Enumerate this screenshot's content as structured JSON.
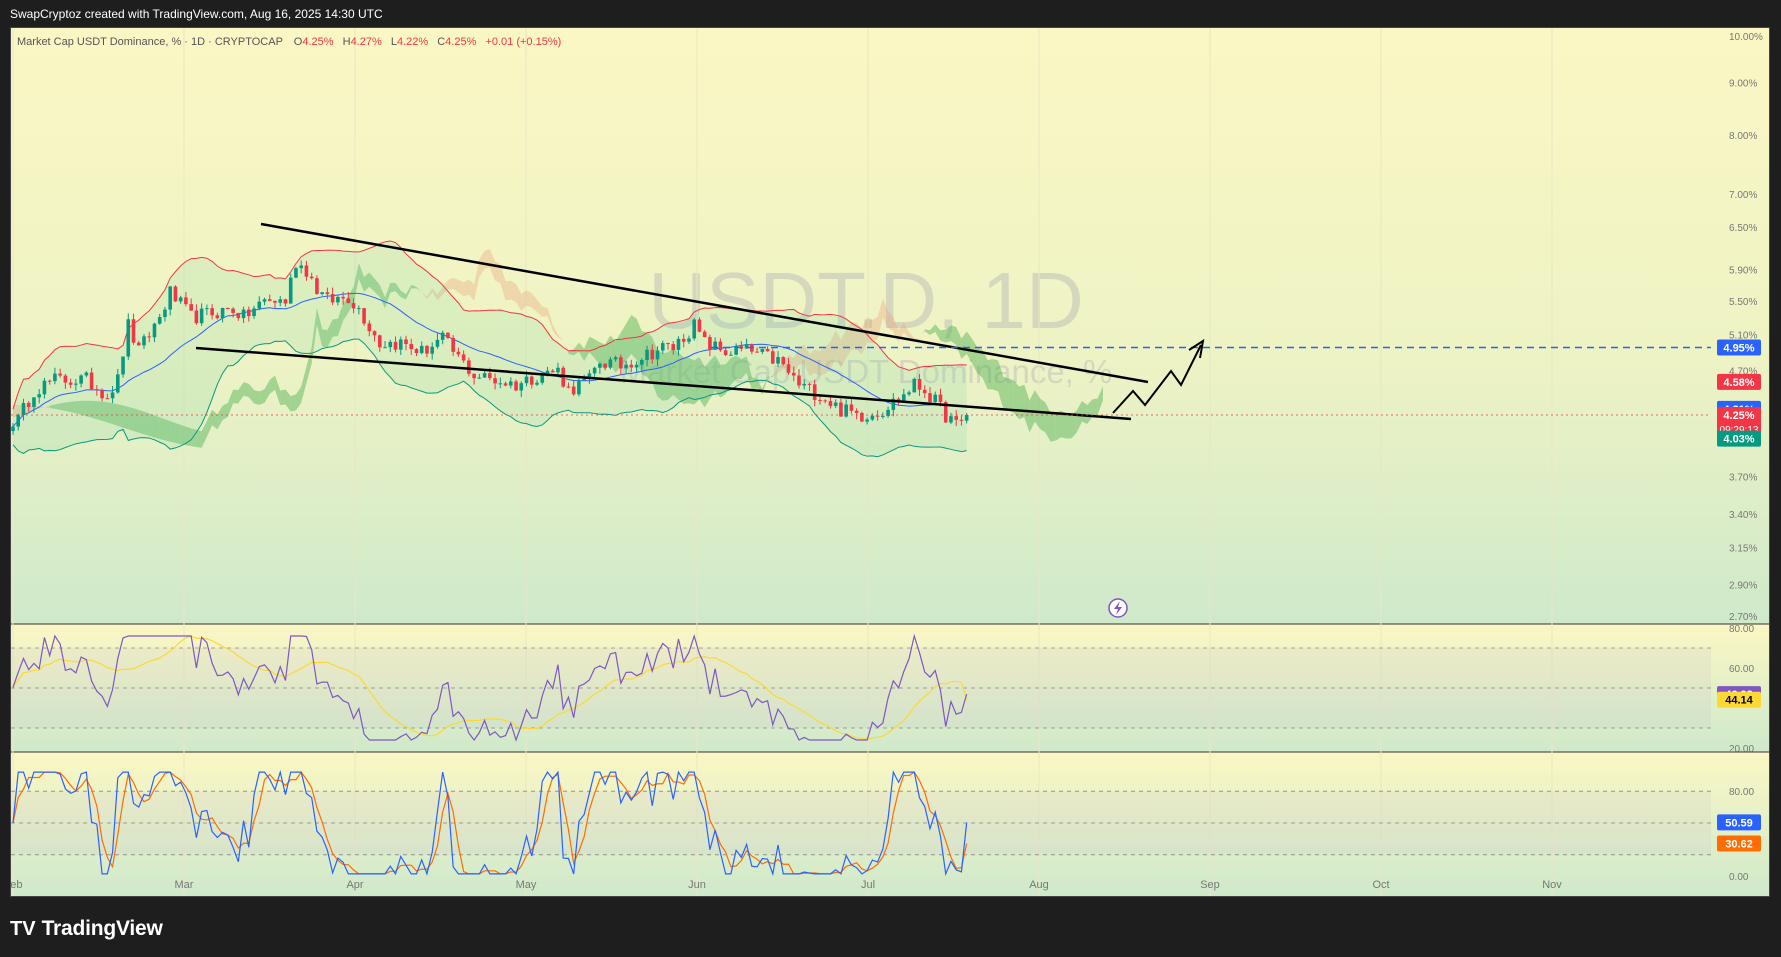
{
  "header": {
    "credit": "SwapCryptoz created with TradingView.com, Aug 16, 2025 14:30 UTC"
  },
  "legend": {
    "name": "Market Cap USDT Dominance, % · 1D · CRYPTOCAP",
    "o_label": "O",
    "o": "4.25%",
    "h_label": "H",
    "h": "4.27%",
    "l_label": "L",
    "l": "4.22%",
    "c_label": "C",
    "c": "4.25%",
    "change": "+0.01 (+0.15%)"
  },
  "watermark": {
    "symbol": "USDT.D, 1D",
    "description": "Market Cap USDT Dominance, %"
  },
  "brand": {
    "mark": "TV",
    "name": "TradingView"
  },
  "colors": {
    "bull": "#089981",
    "bear": "#f23645",
    "accent": "#2962ff",
    "rsi": "#7e57c2",
    "rsi_ma": "#fdd835",
    "stoch_k": "#2962ff",
    "stoch_d": "#ff6d00"
  },
  "chart_data": [
    {
      "type": "candlestick",
      "panel": "price",
      "scale": "log",
      "x_ticks": [
        "Feb",
        "Mar",
        "Apr",
        "May",
        "Jun",
        "Jul",
        "Aug",
        "Sep",
        "Oct",
        "Nov"
      ],
      "y_ticks": [
        "10.00%",
        "9.00%",
        "8.00%",
        "7.00%",
        "6.50%",
        "5.90%",
        "5.50%",
        "5.10%",
        "4.70%",
        "3.70%",
        "3.40%",
        "3.15%",
        "2.90%",
        "2.70%"
      ],
      "ylim": [
        2.7,
        10.0
      ],
      "last_close": 4.25,
      "countdown": "09:29:13",
      "horizontal_level": 4.95,
      "price_badges": [
        {
          "label": "4.95%",
          "value": 4.95,
          "color": "#2962ff"
        },
        {
          "label": "4.58%",
          "value": 4.58,
          "color": "#f23645"
        },
        {
          "label": "4.31%",
          "value": 4.31,
          "color": "#2962ff"
        },
        {
          "label": "4.25%",
          "value": 4.25,
          "color": "#f23645"
        },
        {
          "label": "4.03%",
          "value": 4.03,
          "color": "#089981"
        }
      ],
      "series": [
        {
          "name": "price",
          "anchors": [
            [
              1,
              4.2
            ],
            [
              4,
              4.5
            ],
            [
              8,
              4.6
            ],
            [
              14,
              4.6
            ],
            [
              18,
              4.45
            ],
            [
              20,
              4.6
            ],
            [
              22,
              5.2
            ],
            [
              24,
              4.9
            ],
            [
              28,
              5.3
            ],
            [
              30,
              5.6
            ],
            [
              34,
              5.3
            ],
            [
              38,
              5.35
            ],
            [
              42,
              5.4
            ],
            [
              44,
              5.3
            ],
            [
              48,
              5.5
            ],
            [
              52,
              5.5
            ],
            [
              54,
              6.0
            ],
            [
              56,
              5.9
            ],
            [
              58,
              5.65
            ],
            [
              60,
              5.5
            ],
            [
              64,
              5.55
            ],
            [
              66,
              5.4
            ],
            [
              70,
              5.0
            ],
            [
              74,
              5.0
            ],
            [
              78,
              4.9
            ],
            [
              82,
              5.05
            ],
            [
              84,
              4.9
            ],
            [
              88,
              4.65
            ],
            [
              92,
              4.6
            ],
            [
              96,
              4.55
            ],
            [
              100,
              4.65
            ],
            [
              104,
              4.7
            ],
            [
              106,
              4.5
            ],
            [
              110,
              4.6
            ],
            [
              112,
              4.8
            ],
            [
              116,
              4.75
            ],
            [
              120,
              4.85
            ],
            [
              124,
              4.95
            ],
            [
              126,
              4.95
            ],
            [
              130,
              5.2
            ],
            [
              132,
              5.0
            ],
            [
              136,
              4.9
            ],
            [
              140,
              4.92
            ],
            [
              146,
              4.8
            ],
            [
              150,
              4.55
            ],
            [
              154,
              4.45
            ],
            [
              158,
              4.3
            ],
            [
              162,
              4.25
            ],
            [
              166,
              4.3
            ],
            [
              170,
              4.45
            ],
            [
              172,
              4.55
            ],
            [
              174,
              4.5
            ],
            [
              178,
              4.25
            ],
            [
              180,
              4.15
            ],
            [
              182,
              4.2
            ]
          ]
        }
      ],
      "bollinger_bands": [
        "upper",
        "basis",
        "lower"
      ],
      "ichimoku_cloud": true,
      "trendlines": [
        "falling wedge upper",
        "falling wedge lower"
      ],
      "projection_arrow": "zigzag up to 4.95%"
    },
    {
      "type": "line",
      "panel": "rsi",
      "ylim": [
        20,
        80
      ],
      "y_ticks": [
        "80.00",
        "60.00",
        "20.00"
      ],
      "levels": [
        70,
        50,
        30
      ],
      "series": [
        {
          "name": "",
          "last": 46.93,
          "label": "46.93"
        },
        {
          "name": "",
          "last": 44.14,
          "label": "44.14"
        }
      ]
    },
    {
      "type": "line",
      "panel": "stochastic",
      "ylim": [
        0,
        100
      ],
      "y_ticks": [
        "80.00",
        "0.00"
      ],
      "levels": [
        80,
        50,
        20
      ],
      "series": [
        {
          "name": "",
          "last": 50.59,
          "label": "50.59"
        },
        {
          "name": "",
          "last": 30.62,
          "label": "30.62"
        }
      ]
    }
  ]
}
